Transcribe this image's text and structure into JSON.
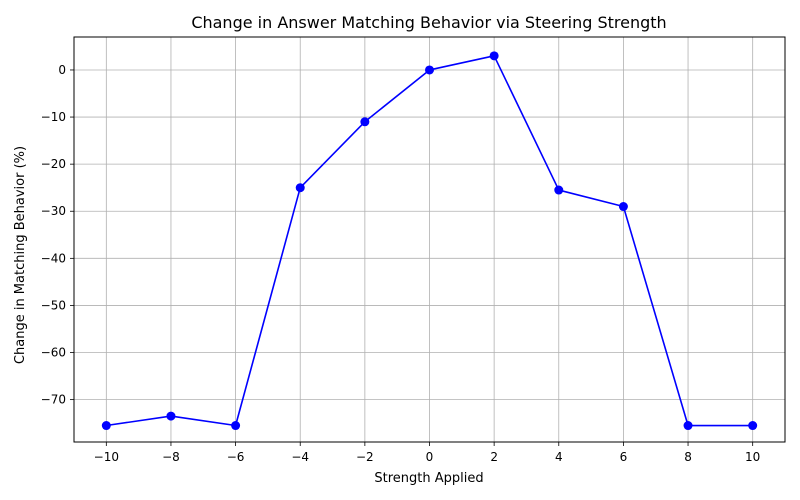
{
  "chart_data": {
    "type": "line",
    "title": "Change in Answer Matching Behavior via Steering Strength",
    "xlabel": "Strength Applied",
    "ylabel": "Change in Matching Behavior (%)",
    "x": [
      -10,
      -8,
      -6,
      -4,
      -2,
      0,
      2,
      4,
      6,
      8,
      10
    ],
    "series": [
      {
        "values": [
          -75.5,
          -73.5,
          -75.5,
          -25,
          -11,
          0,
          3,
          -25.5,
          -29,
          -75.5,
          -75.5
        ],
        "color": "#0000ff",
        "marker": "circle"
      }
    ],
    "xticks": [
      "−10",
      "−8",
      "−6",
      "−4",
      "−2",
      "0",
      "2",
      "4",
      "6",
      "8",
      "10"
    ],
    "yticks": [
      "−70",
      "−60",
      "−50",
      "−40",
      "−30",
      "−20",
      "−10",
      "0"
    ],
    "xtick_values": [
      -10,
      -8,
      -6,
      -4,
      -2,
      0,
      2,
      4,
      6,
      8,
      10
    ],
    "ytick_values": [
      -70,
      -60,
      -50,
      -40,
      -30,
      -20,
      -10,
      0
    ],
    "xlim": [
      -11,
      11
    ],
    "ylim": [
      -79,
      7
    ],
    "grid": true,
    "grid_color": "#b0b0b0",
    "legend": "none"
  }
}
